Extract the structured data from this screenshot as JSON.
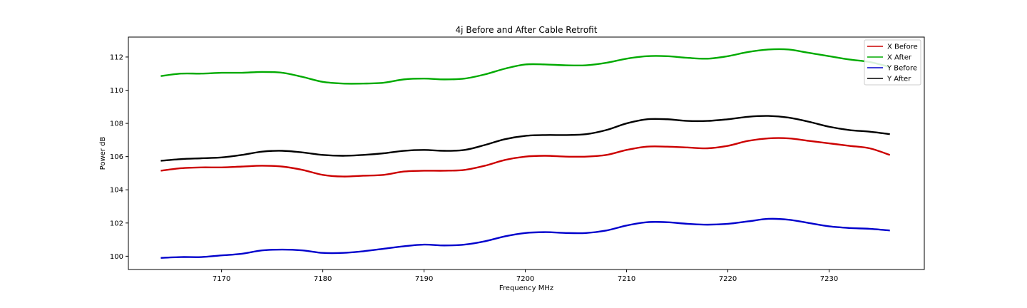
{
  "chart_data": {
    "type": "line",
    "title": "4j Before and After Cable Retrofit",
    "xlabel": "Frequency MHz",
    "ylabel": "Power dB",
    "xlim": [
      7160.8,
      7239.4
    ],
    "ylim": [
      99.2,
      113.2
    ],
    "xticks": [
      7170,
      7180,
      7190,
      7200,
      7210,
      7220,
      7230
    ],
    "yticks": [
      100,
      102,
      104,
      106,
      108,
      110,
      112
    ],
    "grid": false,
    "legend_position": "top-right",
    "x": [
      7164,
      7166,
      7168,
      7170,
      7172,
      7174,
      7176,
      7178,
      7180,
      7182,
      7184,
      7186,
      7188,
      7190,
      7192,
      7194,
      7196,
      7198,
      7200,
      7202,
      7204,
      7206,
      7208,
      7210,
      7212,
      7214,
      7216,
      7218,
      7220,
      7222,
      7224,
      7226,
      7228,
      7230,
      7232,
      7234,
      7236
    ],
    "series": [
      {
        "name": "X Before",
        "color": "#cc0000",
        "values": [
          105.15,
          105.3,
          105.35,
          105.35,
          105.4,
          105.45,
          105.4,
          105.2,
          104.9,
          104.8,
          104.85,
          104.9,
          105.1,
          105.15,
          105.15,
          105.2,
          105.45,
          105.8,
          106.0,
          106.05,
          106.0,
          106.0,
          106.1,
          106.4,
          106.6,
          106.6,
          106.55,
          106.5,
          106.65,
          106.95,
          107.1,
          107.1,
          106.95,
          106.8,
          106.65,
          106.5,
          106.1
        ]
      },
      {
        "name": "X After",
        "color": "#00aa00",
        "values": [
          110.85,
          111.0,
          111.0,
          111.05,
          111.05,
          111.1,
          111.05,
          110.8,
          110.5,
          110.4,
          110.4,
          110.45,
          110.65,
          110.7,
          110.65,
          110.7,
          110.95,
          111.3,
          111.55,
          111.55,
          111.5,
          111.5,
          111.65,
          111.9,
          112.05,
          112.05,
          111.95,
          111.9,
          112.05,
          112.3,
          112.45,
          112.45,
          112.25,
          112.05,
          111.85,
          111.7,
          111.4
        ]
      },
      {
        "name": "Y Before",
        "color": "#0000cc",
        "values": [
          99.9,
          99.95,
          99.95,
          100.05,
          100.15,
          100.35,
          100.4,
          100.35,
          100.2,
          100.2,
          100.3,
          100.45,
          100.6,
          100.7,
          100.65,
          100.7,
          100.9,
          101.2,
          101.4,
          101.45,
          101.4,
          101.4,
          101.55,
          101.85,
          102.05,
          102.05,
          101.95,
          101.9,
          101.95,
          102.1,
          102.25,
          102.2,
          102.0,
          101.8,
          101.7,
          101.65,
          101.55
        ]
      },
      {
        "name": "Y After",
        "color": "#000000",
        "values": [
          105.75,
          105.85,
          105.9,
          105.95,
          106.1,
          106.3,
          106.35,
          106.25,
          106.1,
          106.05,
          106.1,
          106.2,
          106.35,
          106.4,
          106.35,
          106.4,
          106.7,
          107.05,
          107.25,
          107.3,
          107.3,
          107.35,
          107.6,
          108.0,
          108.25,
          108.25,
          108.15,
          108.15,
          108.25,
          108.4,
          108.45,
          108.35,
          108.1,
          107.8,
          107.6,
          107.5,
          107.35
        ]
      }
    ]
  }
}
